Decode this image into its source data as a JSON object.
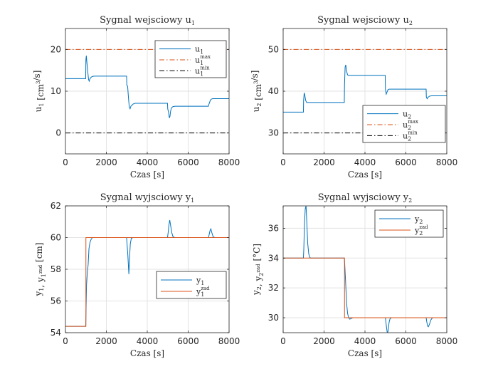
{
  "chart_data": [
    {
      "type": "line",
      "title": "Sygnal wejsciowy u₁",
      "xlabel": "Czas [s]",
      "ylabel": "u₁ [cm³/s]",
      "xlim": [
        0,
        8000
      ],
      "ylim": [
        -5,
        25
      ],
      "xticks": [
        0,
        2000,
        4000,
        6000,
        8000
      ],
      "yticks": [
        0,
        10,
        20
      ],
      "grid": true,
      "legend_position": "top-right",
      "series": [
        {
          "name": "u₁",
          "color": "#0072BD",
          "style": "solid",
          "x": [
            0,
            990,
            1000,
            1020,
            1040,
            1070,
            1100,
            1130,
            1160,
            1200,
            1250,
            1300,
            1400,
            1500,
            2990,
            3000,
            3040,
            3080,
            3120,
            3160,
            3200,
            3300,
            3400,
            3500,
            4990,
            5000,
            5040,
            5080,
            5110,
            5140,
            5180,
            5250,
            5350,
            6990,
            7000,
            7040,
            7080,
            7130,
            7200,
            7300,
            8000
          ],
          "y": [
            13,
            13,
            17.5,
            18.5,
            17.3,
            15.8,
            14.2,
            12.8,
            12.4,
            13.0,
            13.3,
            13.5,
            13.6,
            13.6,
            13.6,
            11.4,
            11.2,
            8.5,
            6.2,
            5.8,
            6.4,
            6.9,
            7.1,
            7.1,
            7.1,
            5.8,
            5.0,
            3.6,
            4.0,
            5.2,
            6.0,
            6.3,
            6.4,
            6.4,
            6.7,
            7.2,
            7.8,
            8.1,
            8.2,
            8.2,
            8.2
          ]
        },
        {
          "name": "u₁",
          "legend_sup": "max",
          "color": "#D95319",
          "style": "dashdot",
          "x": [
            0,
            8000
          ],
          "y": [
            20,
            20
          ]
        },
        {
          "name": "u₁",
          "legend_sup": "min",
          "color": "#000000",
          "style": "dashdot",
          "x": [
            0,
            8000
          ],
          "y": [
            0,
            0
          ]
        }
      ]
    },
    {
      "type": "line",
      "title": "Sygnal wejsciowy u₂",
      "xlabel": "Czas [s]",
      "ylabel": "u₂ [cm³/s]",
      "xlim": [
        0,
        8000
      ],
      "ylim": [
        25,
        55
      ],
      "xticks": [
        0,
        2000,
        4000,
        6000,
        8000
      ],
      "yticks": [
        30,
        40,
        50
      ],
      "grid": true,
      "legend_position": "bottom-right",
      "series": [
        {
          "name": "u₂",
          "color": "#0072BD",
          "style": "solid",
          "x": [
            0,
            990,
            1000,
            1030,
            1060,
            1100,
            1150,
            1200,
            1300,
            2990,
            3000,
            3030,
            3060,
            3100,
            3150,
            3200,
            3300,
            4990,
            5000,
            5040,
            5080,
            5130,
            5200,
            5300,
            6990,
            7000,
            7040,
            7080,
            7150,
            7250,
            8000
          ],
          "y": [
            35,
            35,
            37.8,
            39.6,
            39.0,
            37.8,
            37.3,
            37.3,
            37.3,
            37.3,
            41.5,
            45.8,
            46.3,
            44.8,
            43.9,
            43.8,
            43.8,
            43.8,
            40.4,
            39.3,
            39.8,
            40.4,
            40.5,
            40.5,
            40.5,
            38.6,
            38.2,
            38.5,
            38.8,
            38.9,
            38.9
          ]
        },
        {
          "name": "u₂",
          "legend_sup": "max",
          "color": "#D95319",
          "style": "dashdot",
          "x": [
            0,
            8000
          ],
          "y": [
            50,
            50
          ]
        },
        {
          "name": "u₂",
          "legend_sup": "min",
          "color": "#000000",
          "style": "dashdot",
          "x": [
            0,
            8000
          ],
          "y": [
            30,
            30
          ]
        }
      ]
    },
    {
      "type": "line",
      "title": "Sygnal wyjsciowy y₁",
      "xlabel": "Czas [s]",
      "ylabel": "y₁, y₁ᶻᵃᵈ [cm]",
      "xlim": [
        0,
        8000
      ],
      "ylim": [
        54,
        62
      ],
      "xticks": [
        0,
        2000,
        4000,
        6000,
        8000
      ],
      "yticks": [
        54,
        56,
        58,
        60,
        62
      ],
      "grid": true,
      "legend_position": "bottom-right",
      "series": [
        {
          "name": "y₁",
          "color": "#0072BD",
          "style": "solid",
          "x": [
            0,
            990,
            1000,
            1030,
            1070,
            1110,
            1150,
            1200,
            1260,
            1320,
            1400,
            1500,
            2990,
            3000,
            3050,
            3100,
            3130,
            3170,
            3220,
            3300,
            3400,
            4990,
            5020,
            5060,
            5100,
            5150,
            5200,
            5260,
            5350,
            6990,
            7020,
            7070,
            7110,
            7160,
            7220,
            7300,
            8000
          ],
          "y": [
            54.4,
            54.4,
            55.0,
            57.0,
            57.8,
            58.3,
            59.3,
            59.7,
            59.9,
            60.0,
            60.0,
            60.0,
            60.0,
            59.8,
            58.9,
            57.7,
            58.6,
            59.6,
            59.95,
            60.0,
            60.0,
            60.0,
            60.3,
            60.8,
            61.1,
            60.7,
            60.3,
            60.05,
            60.0,
            60.0,
            60.15,
            60.45,
            60.55,
            60.3,
            60.05,
            60.0,
            60.0
          ]
        },
        {
          "name": "y₁",
          "legend_sup": "zad",
          "color": "#D95319",
          "style": "solid",
          "x": [
            0,
            1000,
            1000,
            8000
          ],
          "y": [
            54.4,
            54.4,
            60,
            60
          ]
        }
      ]
    },
    {
      "type": "line",
      "title": "Sygnal wyjsciowy y₂",
      "xlabel": "Czas [s]",
      "ylabel": "y₂, y₂ᶻᵃᵈ [°C]",
      "xlim": [
        0,
        8000
      ],
      "ylim": [
        29,
        37.5
      ],
      "xticks": [
        0,
        2000,
        4000,
        6000,
        8000
      ],
      "yticks": [
        30,
        32,
        34,
        36
      ],
      "grid": true,
      "legend_position": "top-right",
      "series": [
        {
          "name": "y₂",
          "color": "#0072BD",
          "style": "solid",
          "x": [
            0,
            990,
            1010,
            1040,
            1080,
            1120,
            1160,
            1200,
            1250,
            1300,
            1350,
            1450,
            2990,
            3010,
            3050,
            3100,
            3150,
            3200,
            3260,
            3320,
            3400,
            5000,
            5050,
            5100,
            5140,
            5180,
            5230,
            5300,
            6990,
            7020,
            7060,
            7100,
            7150,
            7220,
            7300,
            8000
          ],
          "y": [
            34.0,
            34.0,
            34.6,
            36.2,
            37.3,
            37.5,
            36.3,
            35.0,
            34.3,
            34.05,
            34.0,
            34.0,
            34.0,
            33.6,
            32.5,
            31.0,
            30.3,
            30.0,
            29.9,
            29.95,
            30.0,
            30.0,
            29.4,
            28.9,
            29.2,
            29.7,
            29.95,
            30.0,
            30.0,
            29.75,
            29.45,
            29.4,
            29.55,
            29.85,
            30.0,
            30.0
          ]
        },
        {
          "name": "y₂",
          "legend_sup": "zad",
          "color": "#D95319",
          "style": "solid",
          "x": [
            0,
            3000,
            3000,
            8000
          ],
          "y": [
            34.0,
            34.0,
            30.0,
            30.0
          ]
        }
      ]
    }
  ]
}
